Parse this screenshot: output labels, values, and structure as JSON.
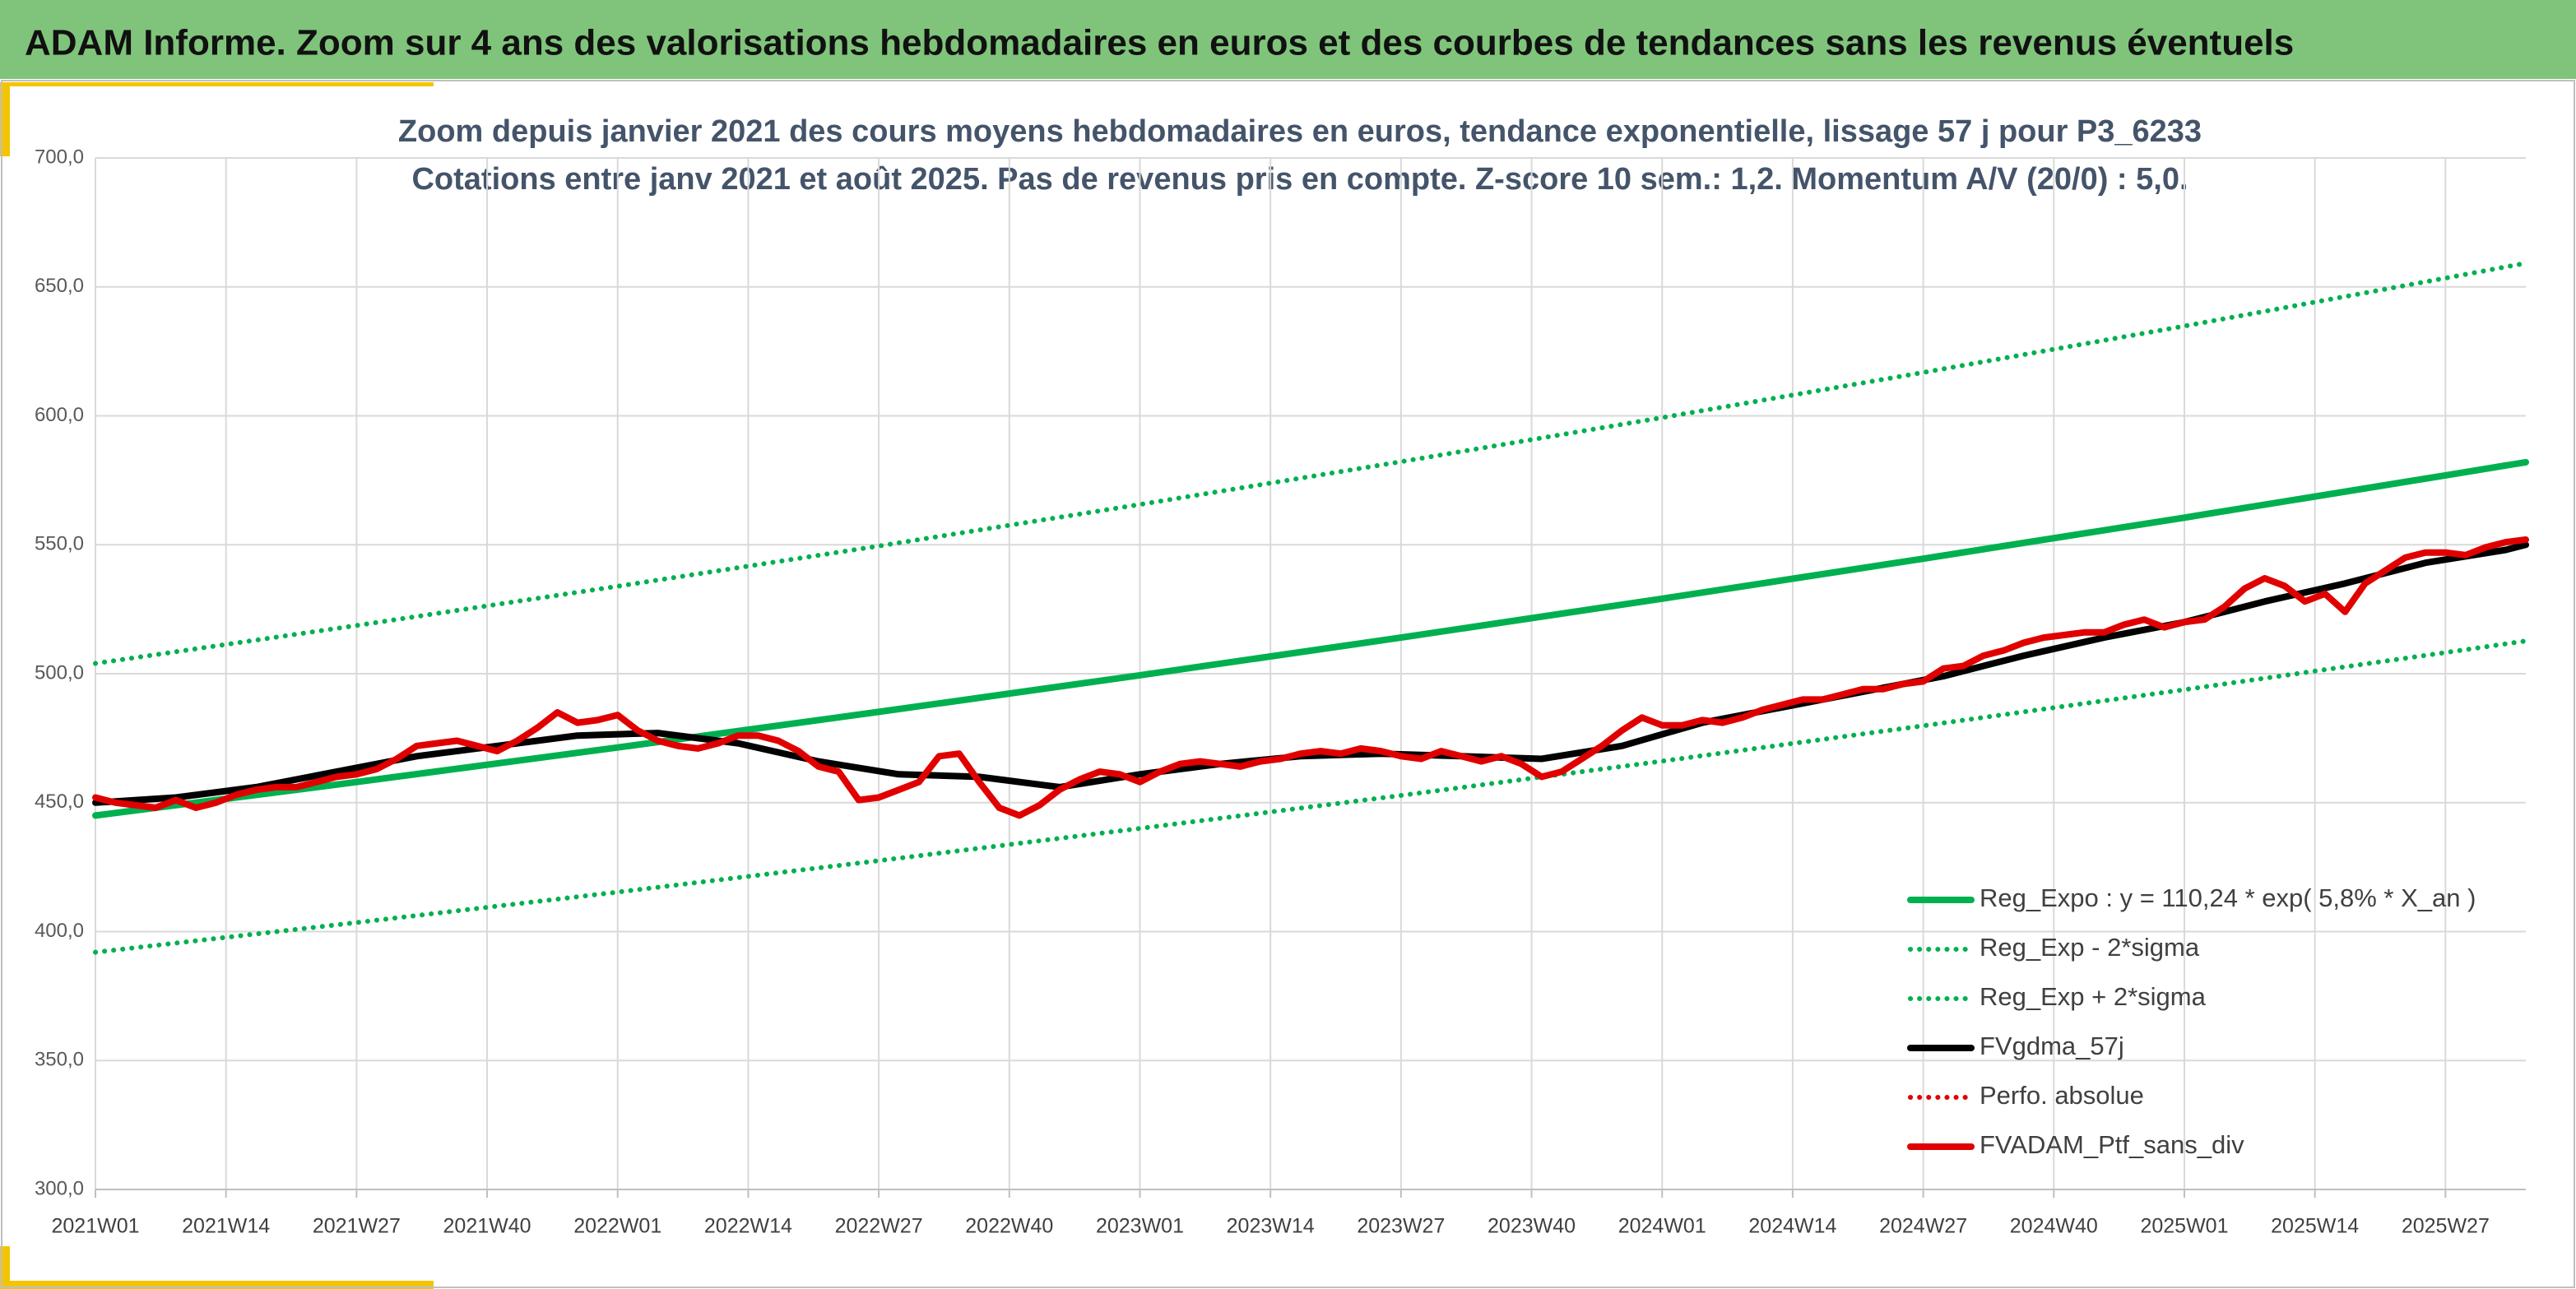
{
  "header": {
    "title": "ADAM Informe. Zoom sur 4 ans des valorisations hebdomadaires en euros et des courbes de tendances sans les revenus éventuels"
  },
  "chart_data": {
    "type": "line",
    "title": "Zoom depuis janvier 2021 des cours moyens hebdomadaires en euros, tendance exponentielle, lissage 57 j pour P3_6233",
    "subtitle": "Cotations entre janv 2021 et août 2025. Pas de revenus pris en compte. Z-score 10 sem.: 1,2. Momentum A/V (20/0) : 5,0.",
    "xlim": [
      0,
      242
    ],
    "xticks": [
      {
        "value": 0,
        "label": "2021W01"
      },
      {
        "value": 13,
        "label": "2021W14"
      },
      {
        "value": 26,
        "label": "2021W27"
      },
      {
        "value": 39,
        "label": "2021W40"
      },
      {
        "value": 52,
        "label": "2022W01"
      },
      {
        "value": 65,
        "label": "2022W14"
      },
      {
        "value": 78,
        "label": "2022W27"
      },
      {
        "value": 91,
        "label": "2022W40"
      },
      {
        "value": 104,
        "label": "2023W01"
      },
      {
        "value": 117,
        "label": "2023W14"
      },
      {
        "value": 130,
        "label": "2023W27"
      },
      {
        "value": 143,
        "label": "2023W40"
      },
      {
        "value": 156,
        "label": "2024W01"
      },
      {
        "value": 169,
        "label": "2024W14"
      },
      {
        "value": 182,
        "label": "2024W27"
      },
      {
        "value": 195,
        "label": "2024W40"
      },
      {
        "value": 208,
        "label": "2025W01"
      },
      {
        "value": 221,
        "label": "2025W14"
      },
      {
        "value": 234,
        "label": "2025W27"
      }
    ],
    "ylim": [
      300,
      700
    ],
    "yticks": [
      {
        "value": 300,
        "label": "300,0"
      },
      {
        "value": 350,
        "label": "350,0"
      },
      {
        "value": 400,
        "label": "400,0"
      },
      {
        "value": 450,
        "label": "450,0"
      },
      {
        "value": 500,
        "label": "500,0"
      },
      {
        "value": 550,
        "label": "550,0"
      },
      {
        "value": 600,
        "label": "600,0"
      },
      {
        "value": 650,
        "label": "650,0"
      },
      {
        "value": 700,
        "label": "700,0"
      }
    ],
    "grid": true,
    "legend": "lower-right",
    "series": [
      {
        "name": "Reg_Expo : y = 110,24 * exp( 5,8% *  X_an )",
        "color": "#00b050",
        "dotted": false,
        "x": [
          0,
          26,
          52,
          78,
          104,
          130,
          156,
          182,
          208,
          234,
          242
        ],
        "values": [
          445.0,
          458.0,
          471.4,
          485.2,
          499.4,
          514.0,
          529.1,
          544.6,
          560.5,
          576.9,
          582.0
        ]
      },
      {
        "name": "Reg_Exp - 2*sigma",
        "color": "#00b050",
        "dotted": true,
        "x": [
          0,
          26,
          52,
          78,
          104,
          130,
          156,
          182,
          208,
          234,
          242
        ],
        "values": [
          392.0,
          403.5,
          415.3,
          427.5,
          440.0,
          452.8,
          466.1,
          479.8,
          493.8,
          508.2,
          512.7
        ]
      },
      {
        "name": "Reg_Exp + 2*sigma",
        "color": "#00b050",
        "dotted": true,
        "x": [
          0,
          26,
          52,
          78,
          104,
          130,
          156,
          182,
          208,
          234,
          242
        ],
        "values": [
          504.0,
          518.7,
          533.9,
          549.5,
          565.6,
          582.2,
          599.3,
          616.8,
          634.8,
          653.4,
          659.2
        ]
      },
      {
        "name": "FVgdma_57j",
        "color": "#000000",
        "dotted": false,
        "x": [
          0,
          8,
          16,
          24,
          32,
          40,
          48,
          56,
          64,
          72,
          80,
          88,
          96,
          104,
          112,
          120,
          128,
          136,
          144,
          152,
          160,
          168,
          176,
          184,
          192,
          200,
          208,
          216,
          224,
          232,
          240,
          242
        ],
        "values": [
          450,
          452,
          456,
          462,
          468,
          472,
          476,
          477,
          473,
          466,
          461,
          460,
          456,
          461,
          465,
          468,
          469,
          468,
          467,
          472,
          481,
          487,
          493,
          499,
          507,
          514,
          520,
          528,
          535,
          543,
          548,
          550
        ]
      },
      {
        "name": "Perfo. absolue",
        "color": "#e00000",
        "dotted": true,
        "x": [],
        "values": []
      },
      {
        "name": "FVADAM_Ptf_sans_div",
        "color": "#e00000",
        "dotted": false,
        "x": [
          0,
          2,
          4,
          6,
          8,
          10,
          12,
          14,
          16,
          18,
          20,
          22,
          24,
          26,
          28,
          30,
          32,
          34,
          36,
          38,
          40,
          42,
          44,
          46,
          48,
          50,
          52,
          54,
          56,
          58,
          60,
          62,
          64,
          66,
          68,
          70,
          72,
          74,
          76,
          78,
          80,
          82,
          84,
          86,
          88,
          90,
          92,
          94,
          96,
          98,
          100,
          102,
          104,
          106,
          108,
          110,
          112,
          114,
          116,
          118,
          120,
          122,
          124,
          126,
          128,
          130,
          132,
          134,
          136,
          138,
          140,
          142,
          144,
          146,
          148,
          150,
          152,
          154,
          156,
          158,
          160,
          162,
          164,
          166,
          168,
          170,
          172,
          174,
          176,
          178,
          180,
          182,
          184,
          186,
          188,
          190,
          192,
          194,
          196,
          198,
          200,
          202,
          204,
          206,
          208,
          210,
          212,
          214,
          216,
          218,
          220,
          222,
          224,
          226,
          228,
          230,
          232,
          234,
          236,
          238,
          240,
          242
        ],
        "values": [
          452,
          450,
          449,
          448,
          451,
          448,
          450,
          453,
          455,
          456,
          456,
          458,
          460,
          461,
          463,
          467,
          472,
          473,
          474,
          472,
          470,
          474,
          479,
          485,
          481,
          482,
          484,
          478,
          474,
          472,
          471,
          473,
          476,
          476,
          474,
          470,
          464,
          462,
          451,
          452,
          455,
          458,
          468,
          469,
          458,
          448,
          445,
          449,
          455,
          459,
          462,
          461,
          458,
          462,
          465,
          466,
          465,
          464,
          466,
          467,
          469,
          470,
          469,
          471,
          470,
          468,
          467,
          470,
          468,
          466,
          468,
          465,
          460,
          462,
          467,
          472,
          478,
          483,
          480,
          480,
          482,
          481,
          483,
          486,
          488,
          490,
          490,
          492,
          494,
          494,
          496,
          497,
          502,
          503,
          507,
          509,
          512,
          514,
          515,
          516,
          516,
          519,
          521,
          518,
          520,
          521,
          526,
          533,
          537,
          534,
          528,
          531,
          524,
          535,
          540,
          545,
          547,
          547,
          546,
          549,
          551,
          552
        ]
      }
    ]
  }
}
